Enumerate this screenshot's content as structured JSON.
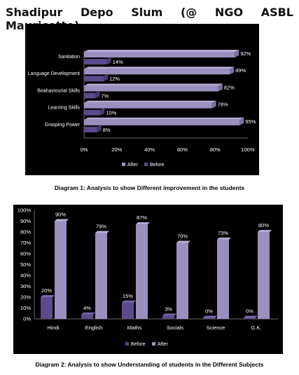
{
  "title": "Shadipur  Depo  Slum  (@  NGO  ASBL  Mauricette)",
  "captions": {
    "diagram1": "Diagram 1: Analysis to show Different improvement in the students",
    "diagram2": "Diagram 2: Analysis to show Understanding of students in the Different Subjects"
  },
  "colors": {
    "background": "#000000",
    "after": "#9b8fc0",
    "before": "#5b4a8c",
    "text": "#ffffff"
  },
  "chart_data": [
    {
      "type": "bar",
      "orientation": "horizontal",
      "categories": [
        "Sanitation",
        "Language Development",
        "Beahaviourial Skills",
        "Learning Skills",
        "Grasping Power"
      ],
      "series": [
        {
          "name": "After",
          "values": [
            92,
            89,
            82,
            78,
            95
          ],
          "labels": [
            "92%",
            "89%",
            "82%",
            "78%",
            "95%"
          ]
        },
        {
          "name": "Before",
          "values": [
            14,
            12,
            7,
            10,
            8
          ],
          "labels": [
            "14%",
            "12%",
            "7%",
            "10%",
            "8%"
          ]
        }
      ],
      "xticks": [
        "0%",
        "20%",
        "40%",
        "60%",
        "80%",
        "100%"
      ],
      "xlim": [
        0,
        100
      ],
      "grid": false,
      "legend": "bottom",
      "legend_labels": [
        "After",
        "Before"
      ]
    },
    {
      "type": "bar",
      "orientation": "vertical",
      "categories": [
        "Hindi",
        "English",
        "Maths",
        "Socials",
        "Science",
        "G.K."
      ],
      "series": [
        {
          "name": "Before",
          "values": [
            20,
            4,
            15,
            3,
            0,
            0
          ],
          "labels": [
            "20%",
            "4%",
            "15%",
            "3%",
            "0%",
            "0%"
          ]
        },
        {
          "name": "After",
          "values": [
            90,
            79,
            87,
            70,
            73,
            80
          ],
          "labels": [
            "90%",
            "79%",
            "87%",
            "70%",
            "73%",
            "80%"
          ]
        }
      ],
      "yticks": [
        "0%",
        "10%",
        "20%",
        "30%",
        "40%",
        "50%",
        "60%",
        "70%",
        "80%",
        "90%",
        "100%"
      ],
      "ylim": [
        0,
        100
      ],
      "grid": false,
      "legend": "bottom",
      "legend_labels": [
        "Before",
        "After"
      ]
    }
  ]
}
